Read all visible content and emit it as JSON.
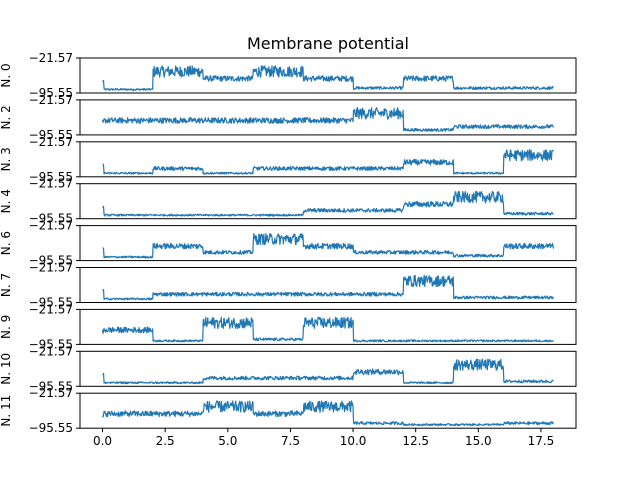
{
  "chart_data": {
    "type": "line",
    "title": "Membrane potential",
    "xlim": [
      -0.9,
      18.9
    ],
    "x_ticks": [
      {
        "value": 0,
        "label": "0.0"
      },
      {
        "value": 2.5,
        "label": "2.5"
      },
      {
        "value": 5,
        "label": "5.0"
      },
      {
        "value": 7.5,
        "label": "7.5"
      },
      {
        "value": 10,
        "label": "10.0"
      },
      {
        "value": 12.5,
        "label": "12.5"
      },
      {
        "value": 15,
        "label": "15.0"
      },
      {
        "value": 17.5,
        "label": "17.5"
      }
    ],
    "ylim": [
      -95.55,
      -21.57
    ],
    "y_tick_labels": [
      "-21.57",
      "-95.55"
    ],
    "line_color": "#1f77b4",
    "grid": false,
    "series": [
      {
        "name": "N. 0",
        "levels": [
          [
            0,
            2,
            "rest"
          ],
          [
            2,
            4,
            "high"
          ],
          [
            4,
            6,
            "mid"
          ],
          [
            6,
            8,
            "high"
          ],
          [
            8,
            10,
            "mid"
          ],
          [
            10,
            12,
            "low"
          ],
          [
            12,
            14,
            "mid"
          ],
          [
            14,
            16,
            "low"
          ],
          [
            16,
            18,
            "low"
          ]
        ]
      },
      {
        "name": "N. 2",
        "levels": [
          [
            0,
            2,
            "mid"
          ],
          [
            2,
            4,
            "mid"
          ],
          [
            4,
            6,
            "mid"
          ],
          [
            6,
            8,
            "mid"
          ],
          [
            8,
            10,
            "mid"
          ],
          [
            10,
            12,
            "high"
          ],
          [
            12,
            14,
            "low"
          ],
          [
            14,
            16,
            "lowmid"
          ],
          [
            16,
            18,
            "lowmid"
          ]
        ]
      },
      {
        "name": "N. 3",
        "levels": [
          [
            0,
            2,
            "rest"
          ],
          [
            2,
            4,
            "lowmid"
          ],
          [
            4,
            6,
            "rest"
          ],
          [
            6,
            8,
            "lowmid"
          ],
          [
            8,
            10,
            "lowmid"
          ],
          [
            10,
            12,
            "lowmid"
          ],
          [
            12,
            14,
            "mid"
          ],
          [
            14,
            16,
            "rest"
          ],
          [
            16,
            18,
            "high"
          ]
        ]
      },
      {
        "name": "N. 4",
        "levels": [
          [
            0,
            2,
            "rest"
          ],
          [
            2,
            4,
            "rest"
          ],
          [
            4,
            6,
            "rest"
          ],
          [
            6,
            8,
            "rest"
          ],
          [
            8,
            10,
            "lowmid"
          ],
          [
            10,
            12,
            "lowmid"
          ],
          [
            12,
            14,
            "mid"
          ],
          [
            14,
            16,
            "high"
          ],
          [
            16,
            18,
            "low"
          ]
        ]
      },
      {
        "name": "N. 6",
        "levels": [
          [
            0,
            2,
            "rest"
          ],
          [
            2,
            4,
            "mid"
          ],
          [
            4,
            6,
            "lowmid"
          ],
          [
            6,
            8,
            "high"
          ],
          [
            8,
            10,
            "mid"
          ],
          [
            10,
            12,
            "lowmid"
          ],
          [
            12,
            14,
            "lowmid"
          ],
          [
            14,
            16,
            "low"
          ],
          [
            16,
            18,
            "mid"
          ]
        ]
      },
      {
        "name": "N. 7",
        "levels": [
          [
            0,
            2,
            "rest"
          ],
          [
            2,
            4,
            "lowmid"
          ],
          [
            4,
            6,
            "lowmid"
          ],
          [
            6,
            8,
            "lowmid"
          ],
          [
            8,
            10,
            "lowmid"
          ],
          [
            10,
            12,
            "lowmid"
          ],
          [
            12,
            14,
            "high"
          ],
          [
            14,
            16,
            "low"
          ],
          [
            16,
            18,
            "low"
          ]
        ]
      },
      {
        "name": "N. 9",
        "levels": [
          [
            0,
            2,
            "mid"
          ],
          [
            2,
            4,
            "rest"
          ],
          [
            4,
            6,
            "high"
          ],
          [
            6,
            8,
            "low"
          ],
          [
            8,
            10,
            "high"
          ],
          [
            10,
            12,
            "rest"
          ],
          [
            12,
            14,
            "rest"
          ],
          [
            14,
            16,
            "rest"
          ],
          [
            16,
            18,
            "rest"
          ]
        ]
      },
      {
        "name": "N. 10",
        "levels": [
          [
            0,
            2,
            "rest"
          ],
          [
            2,
            4,
            "rest"
          ],
          [
            4,
            6,
            "lowmid"
          ],
          [
            6,
            8,
            "lowmid"
          ],
          [
            8,
            10,
            "lowmid"
          ],
          [
            10,
            12,
            "mid"
          ],
          [
            12,
            14,
            "rest"
          ],
          [
            14,
            16,
            "high"
          ],
          [
            16,
            18,
            "low"
          ]
        ]
      },
      {
        "name": "N. 11",
        "levels": [
          [
            0,
            2,
            "mid"
          ],
          [
            2,
            4,
            "mid"
          ],
          [
            4,
            6,
            "high"
          ],
          [
            6,
            8,
            "mid"
          ],
          [
            8,
            10,
            "high"
          ],
          [
            10,
            12,
            "low"
          ],
          [
            12,
            14,
            "rest"
          ],
          [
            14,
            16,
            "rest"
          ],
          [
            16,
            18,
            "low"
          ]
        ]
      }
    ],
    "level_values": {
      "rest": -88,
      "low": -85,
      "lowmid": -78,
      "mid": -65,
      "high": -50
    },
    "level_noise": {
      "rest": 2,
      "low": 3,
      "lowmid": 4,
      "mid": 6,
      "high": 12
    }
  }
}
